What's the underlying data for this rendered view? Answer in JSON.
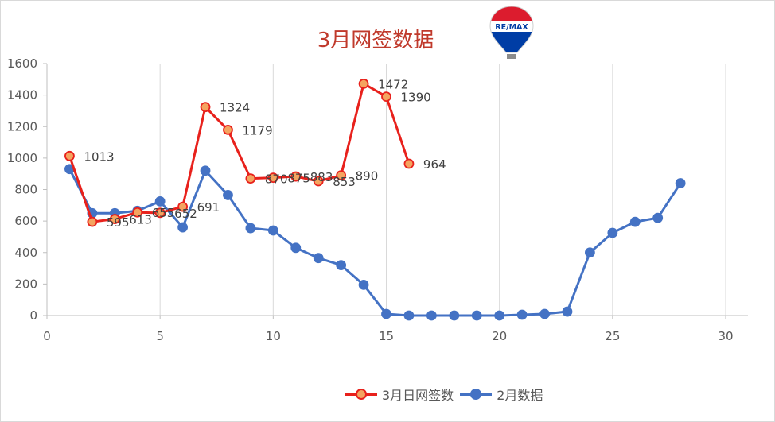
{
  "chart_data": {
    "type": "line",
    "title": "3月网签数据",
    "xlim": [
      0,
      30
    ],
    "ylim": [
      0,
      1600
    ],
    "x_ticks": [
      "0",
      "5",
      "10",
      "15",
      "20",
      "25",
      "30"
    ],
    "y_ticks": [
      "0",
      "200",
      "400",
      "600",
      "800",
      "1000",
      "1200",
      "1400",
      "1600"
    ],
    "grid": "vertical gridlines at each x tick",
    "legend_position": "bottom",
    "series": [
      {
        "name": "3月日网签数",
        "color": "#e8211c",
        "marker_fill": "#f4a460",
        "x": [
          1,
          2,
          3,
          4,
          5,
          6,
          7,
          8,
          9,
          10,
          11,
          12,
          13,
          14,
          15,
          16
        ],
        "values": [
          1013,
          595,
          613,
          655,
          652,
          691,
          1324,
          1179,
          870,
          875,
          883,
          853,
          890,
          1472,
          1390,
          964
        ],
        "labels": [
          "1013",
          "595",
          "613",
          "655",
          "652",
          "691",
          "1324",
          "1179",
          "870",
          "875",
          "883",
          "853",
          "890",
          "1472",
          "1390",
          "964"
        ]
      },
      {
        "name": "2月数据",
        "color": "#4472c4",
        "marker_fill": "#4472c4",
        "x": [
          1,
          2,
          3,
          4,
          5,
          6,
          7,
          8,
          9,
          10,
          11,
          12,
          13,
          14,
          15,
          16,
          17,
          18,
          19,
          20,
          21,
          22,
          23,
          24,
          25,
          26,
          27,
          28
        ],
        "values": [
          930,
          650,
          650,
          665,
          725,
          560,
          920,
          765,
          555,
          540,
          430,
          365,
          320,
          195,
          10,
          0,
          0,
          0,
          0,
          0,
          5,
          10,
          25,
          400,
          525,
          595,
          620,
          840
        ]
      }
    ]
  },
  "logo": {
    "text": "RE/MAX",
    "colors": [
      "#dc1c2e",
      "#ffffff",
      "#003da5"
    ]
  }
}
